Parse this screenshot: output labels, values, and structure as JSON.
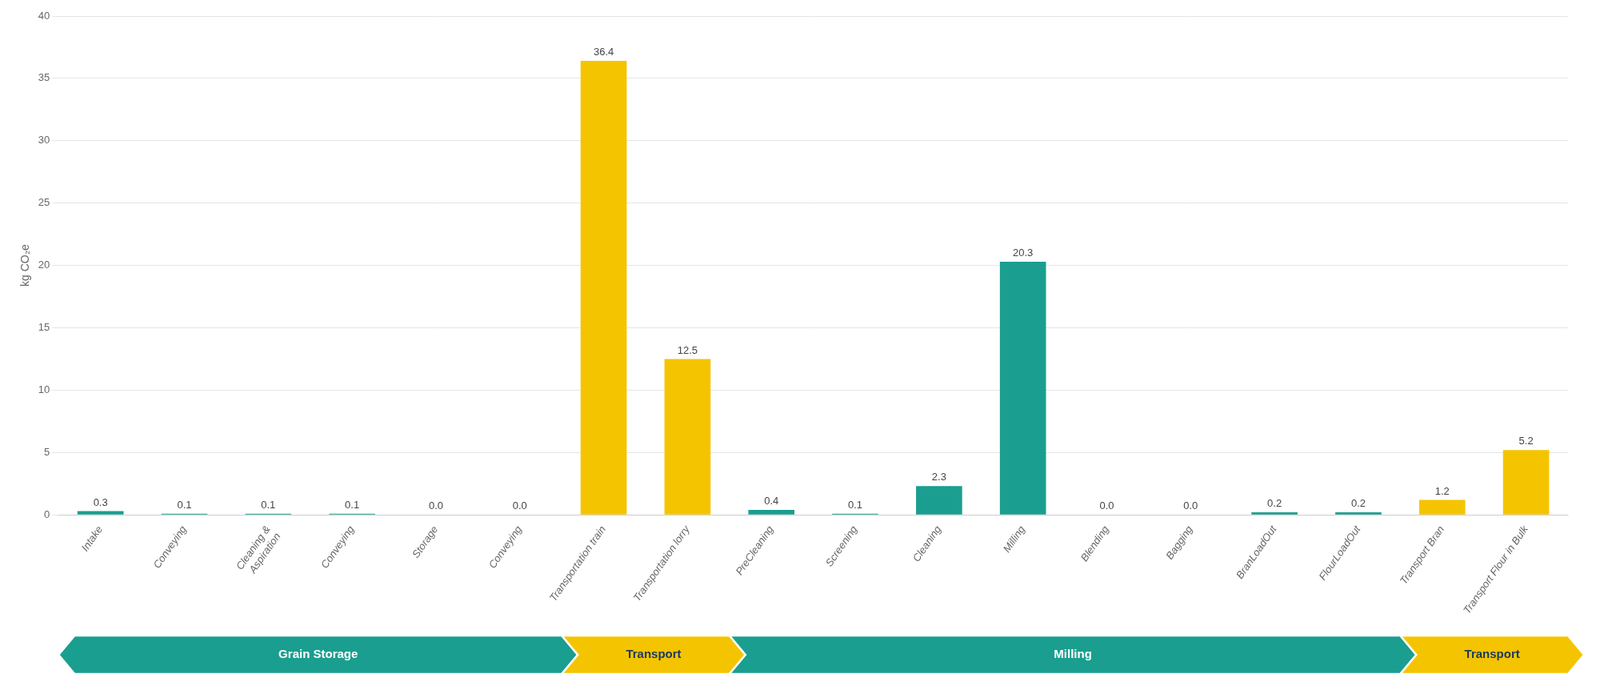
{
  "chart_data": {
    "type": "bar",
    "categories": [
      "Intake",
      "Conveying",
      "Cleaning &\nAspiration",
      "Conveying",
      "Storage",
      "Conveying",
      "Transportation train",
      "Transportation lorry",
      "PreCleaning",
      "Screening",
      "Cleaning",
      "Milling",
      "Blending",
      "Bagging",
      "BranLoadOut",
      "FlourLoadOut",
      "Transport Bran",
      "Transport Flour in Bulk"
    ],
    "values": [
      0.3,
      0.1,
      0.1,
      0.1,
      0.0,
      0.0,
      36.4,
      12.5,
      0.4,
      0.1,
      2.3,
      20.3,
      0.0,
      0.0,
      0.2,
      0.2,
      1.2,
      5.2
    ],
    "value_labels": [
      "0.3",
      "0.1",
      "0.1",
      "0.1",
      "0.0",
      "0.0",
      "36.4",
      "12.5",
      "0.4",
      "0.1",
      "2.3",
      "20.3",
      "0.0",
      "0.0",
      "0.2",
      "0.2",
      "1.2",
      "5.2"
    ],
    "colors": [
      "#1a9e8f",
      "#1a9e8f",
      "#1a9e8f",
      "#1a9e8f",
      "#1a9e8f",
      "#1a9e8f",
      "#f5c400",
      "#f5c400",
      "#1a9e8f",
      "#1a9e8f",
      "#1a9e8f",
      "#1a9e8f",
      "#1a9e8f",
      "#1a9e8f",
      "#1a9e8f",
      "#1a9e8f",
      "#f5c400",
      "#f5c400"
    ],
    "y_label": "kg CO₂e",
    "ylim": [
      0,
      40
    ],
    "yticks": [
      0,
      5,
      10,
      15,
      20,
      25,
      30,
      35,
      40
    ],
    "grid": true,
    "data_labels": true,
    "annotations": [
      {
        "text": "Grain Storage",
        "start": 0,
        "end": 6,
        "color": "#1a9e8f"
      },
      {
        "text": "Transport",
        "start": 6,
        "end": 8,
        "color": "#f5c400"
      },
      {
        "text": "Milling",
        "start": 8,
        "end": 16,
        "color": "#1a9e8f"
      },
      {
        "text": "Transport",
        "start": 16,
        "end": 18,
        "color": "#f5c400"
      }
    ]
  }
}
